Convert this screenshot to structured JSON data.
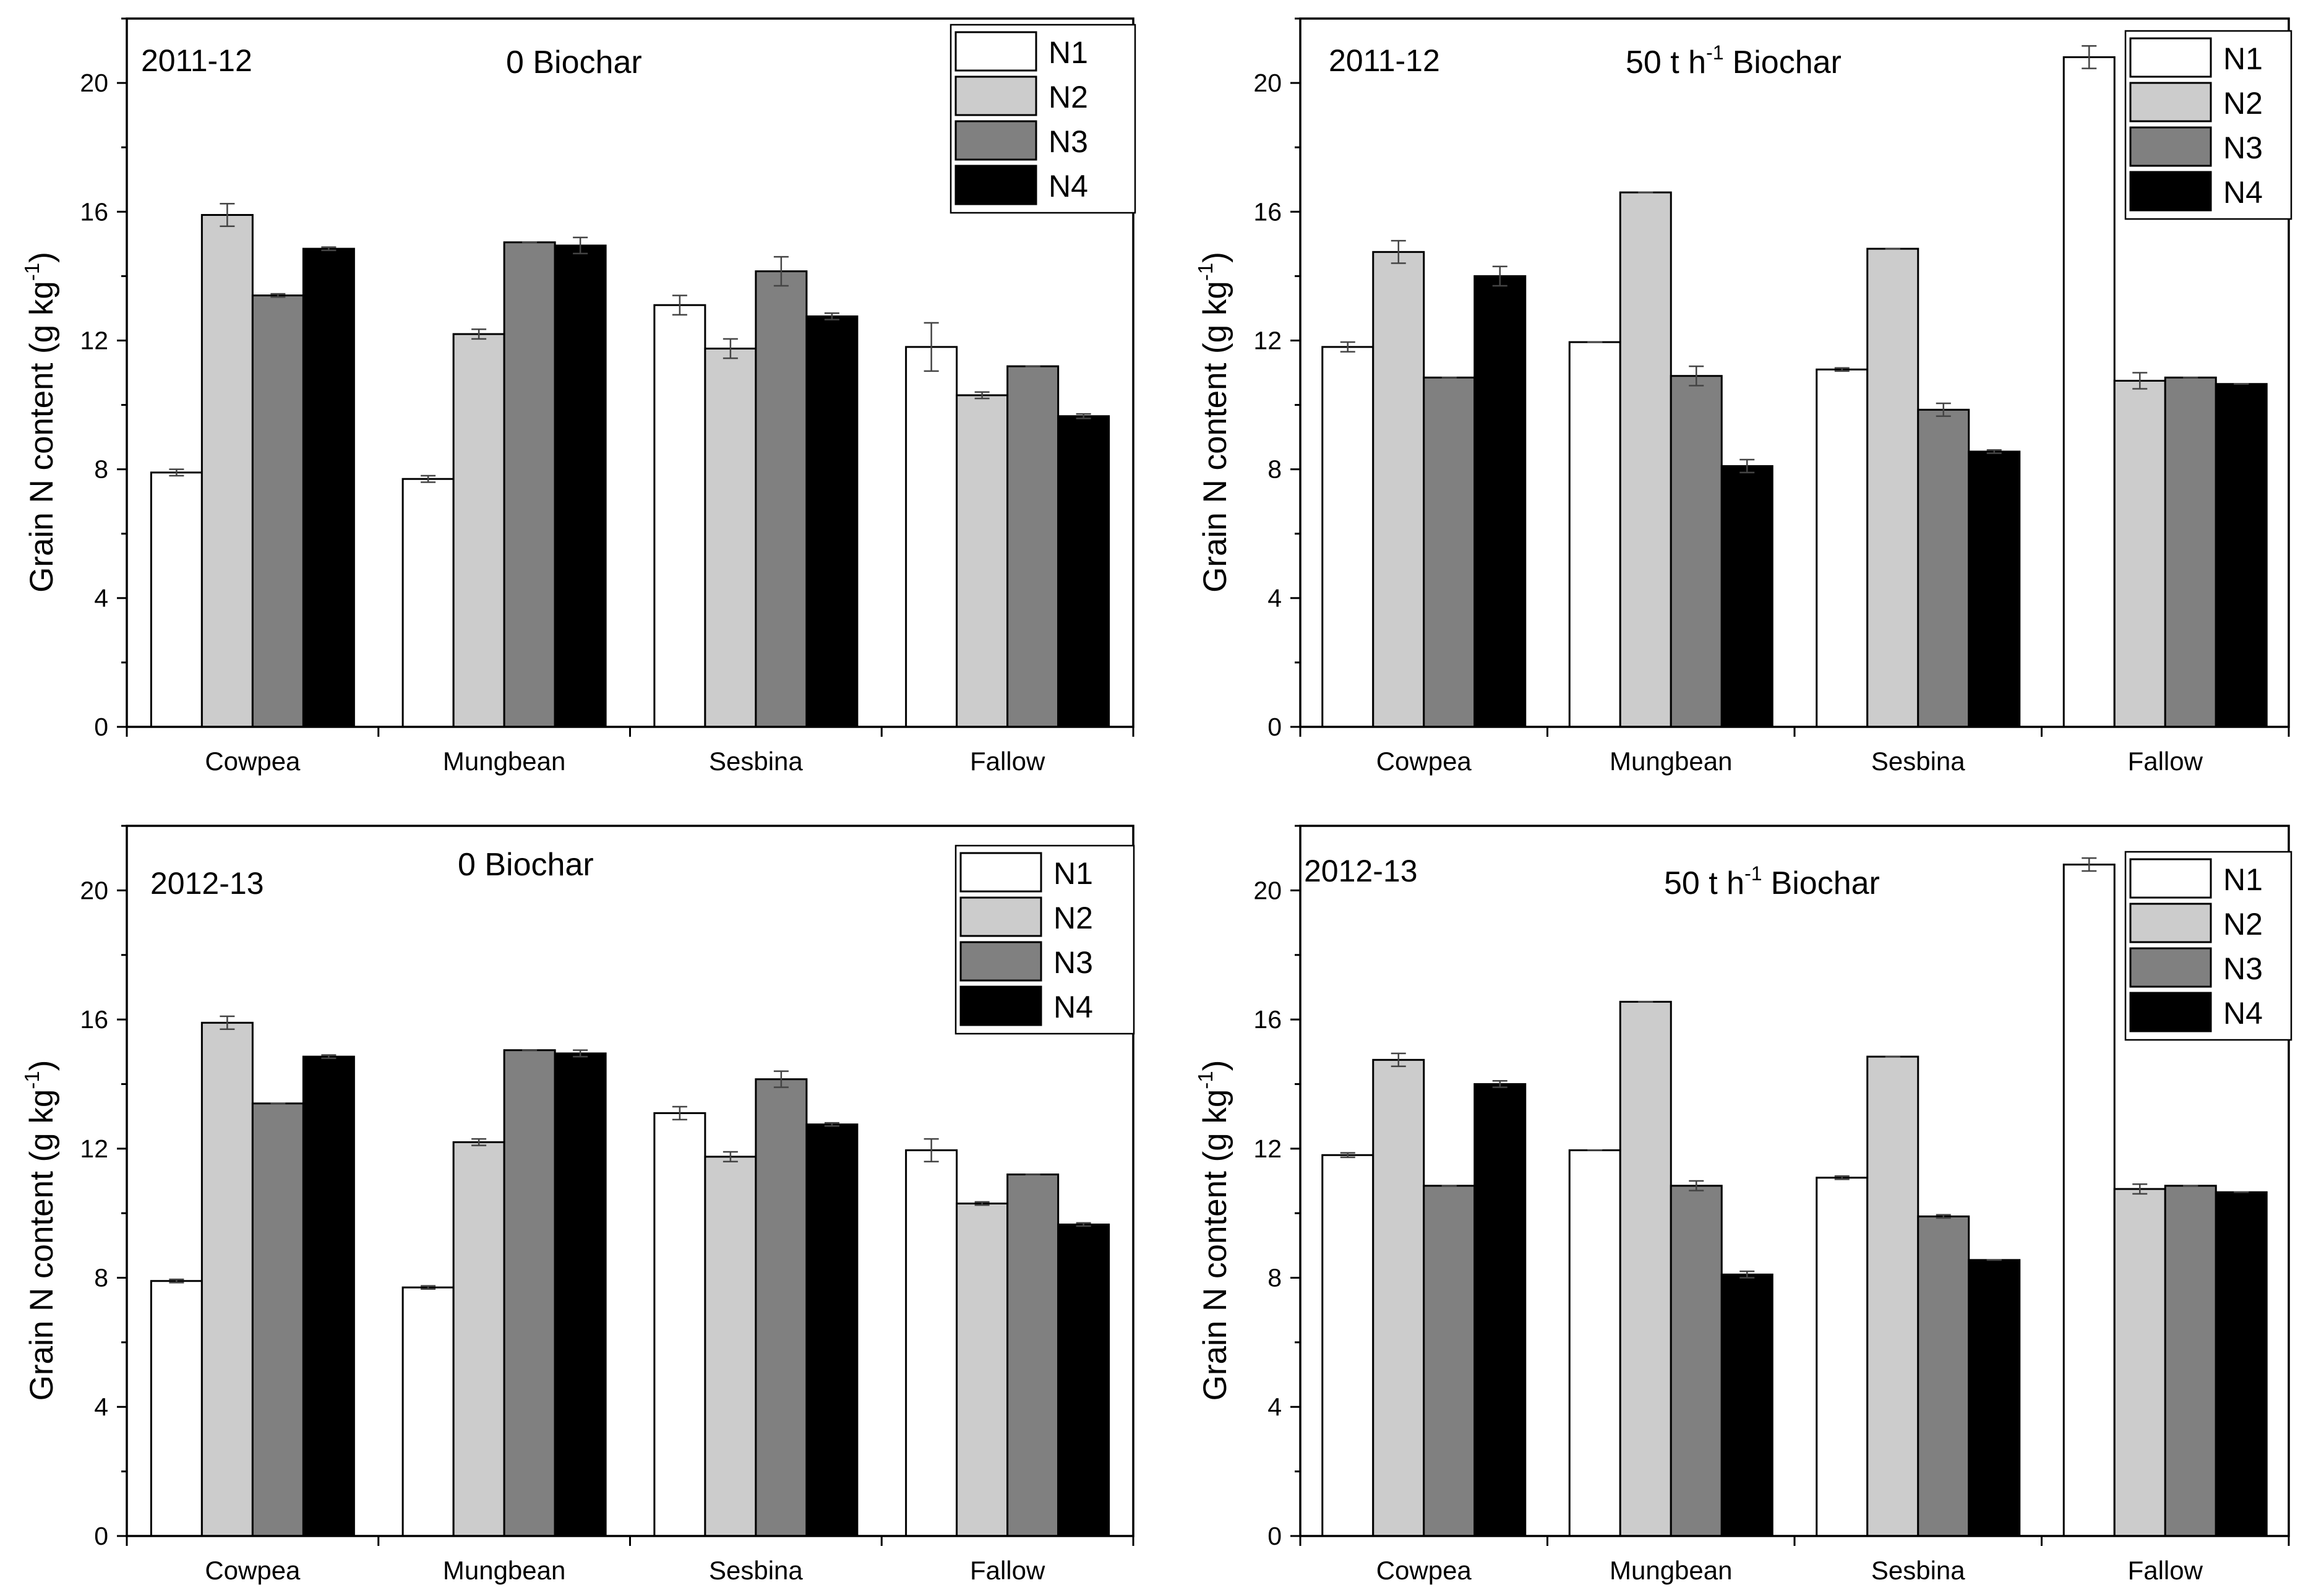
{
  "colors": {
    "N1": "#ffffff",
    "N2": "#cccccc",
    "N3": "#808080",
    "N4": "#000000",
    "axis": "#000000"
  },
  "chart_data": [
    {
      "type": "bar",
      "year": "2011-12",
      "title_main": "0 Biochar",
      "title_unit": "",
      "title_exp": "",
      "ylabel": "Grain N content (g kg",
      "ylabel_exp": "-1",
      "ylabel_close": ")",
      "ylim": [
        0,
        22
      ],
      "yticks": [
        0,
        4,
        8,
        12,
        16,
        20
      ],
      "categories": [
        "Cowpea",
        "Mungbean",
        "Sesbina",
        "Fallow"
      ],
      "legend_position": "top-right",
      "series": [
        {
          "name": "N1",
          "values": [
            7.9,
            7.7,
            13.1,
            11.8
          ],
          "errors": [
            0.1,
            0.1,
            0.3,
            0.75
          ]
        },
        {
          "name": "N2",
          "values": [
            15.9,
            12.2,
            11.75,
            10.3
          ],
          "errors": [
            0.35,
            0.15,
            0.3,
            0.1
          ]
        },
        {
          "name": "N3",
          "values": [
            13.4,
            15.05,
            14.15,
            11.2
          ],
          "errors": [
            0.05,
            0.0,
            0.45,
            0.0
          ]
        },
        {
          "name": "N4",
          "values": [
            14.85,
            14.95,
            12.75,
            9.65
          ],
          "errors": [
            0.05,
            0.25,
            0.1,
            0.07
          ]
        }
      ]
    },
    {
      "type": "bar",
      "year": "2011-12",
      "title_main": "Biochar",
      "title_unit": "50 t h",
      "title_exp": "-1",
      "ylabel": "Grain N content (g kg",
      "ylabel_exp": "-1",
      "ylabel_close": ")",
      "ylim": [
        0,
        22
      ],
      "yticks": [
        0,
        4,
        8,
        12,
        16,
        20
      ],
      "categories": [
        "Cowpea",
        "Mungbean",
        "Sesbina",
        "Fallow"
      ],
      "legend_position": "top-right",
      "series": [
        {
          "name": "N1",
          "values": [
            11.8,
            11.95,
            11.1,
            20.8
          ],
          "errors": [
            0.15,
            0.0,
            0.05,
            0.35
          ]
        },
        {
          "name": "N2",
          "values": [
            14.75,
            16.6,
            14.85,
            10.75
          ],
          "errors": [
            0.35,
            0.0,
            0.0,
            0.25
          ]
        },
        {
          "name": "N3",
          "values": [
            10.85,
            10.9,
            9.85,
            10.85
          ],
          "errors": [
            0.0,
            0.3,
            0.2,
            0.0
          ]
        },
        {
          "name": "N4",
          "values": [
            14.0,
            8.1,
            8.55,
            10.65
          ],
          "errors": [
            0.3,
            0.2,
            0.05,
            0.0
          ]
        }
      ]
    },
    {
      "type": "bar",
      "year": "2012-13",
      "title_main": "0 Biochar",
      "title_unit": "",
      "title_exp": "",
      "ylabel": "Grain N content (g kg",
      "ylabel_exp": "-1",
      "ylabel_close": ")",
      "ylim": [
        0,
        22
      ],
      "yticks": [
        0,
        4,
        8,
        12,
        16,
        20
      ],
      "categories": [
        "Cowpea",
        "Mungbean",
        "Sesbina",
        "Fallow"
      ],
      "legend_position": "top-right",
      "series": [
        {
          "name": "N1",
          "values": [
            7.9,
            7.7,
            13.1,
            11.95
          ],
          "errors": [
            0.05,
            0.05,
            0.2,
            0.35
          ]
        },
        {
          "name": "N2",
          "values": [
            15.9,
            12.2,
            11.75,
            10.3
          ],
          "errors": [
            0.2,
            0.1,
            0.15,
            0.05
          ]
        },
        {
          "name": "N3",
          "values": [
            13.4,
            15.05,
            14.15,
            11.2
          ],
          "errors": [
            0.0,
            0.0,
            0.25,
            0.0
          ]
        },
        {
          "name": "N4",
          "values": [
            14.85,
            14.95,
            12.75,
            9.65
          ],
          "errors": [
            0.05,
            0.1,
            0.05,
            0.05
          ]
        }
      ]
    },
    {
      "type": "bar",
      "year": "2012-13",
      "title_main": "Biochar",
      "title_unit": "50 t h",
      "title_exp": "-1",
      "ylabel": "Grain N content (g kg",
      "ylabel_exp": "-1",
      "ylabel_close": ")",
      "ylim": [
        0,
        22
      ],
      "yticks": [
        0,
        4,
        8,
        12,
        16,
        20
      ],
      "categories": [
        "Cowpea",
        "Mungbean",
        "Sesbina",
        "Fallow"
      ],
      "legend_position": "top-right",
      "series": [
        {
          "name": "N1",
          "values": [
            11.8,
            11.95,
            11.1,
            20.8
          ],
          "errors": [
            0.07,
            0.0,
            0.05,
            0.2
          ]
        },
        {
          "name": "N2",
          "values": [
            14.75,
            16.55,
            14.85,
            10.75
          ],
          "errors": [
            0.2,
            0.0,
            0.0,
            0.15
          ]
        },
        {
          "name": "N3",
          "values": [
            10.85,
            10.85,
            9.9,
            10.85
          ],
          "errors": [
            0.0,
            0.15,
            0.05,
            0.0
          ]
        },
        {
          "name": "N4",
          "values": [
            14.0,
            8.1,
            8.55,
            10.65
          ],
          "errors": [
            0.1,
            0.1,
            0.0,
            0.0
          ]
        }
      ]
    }
  ]
}
